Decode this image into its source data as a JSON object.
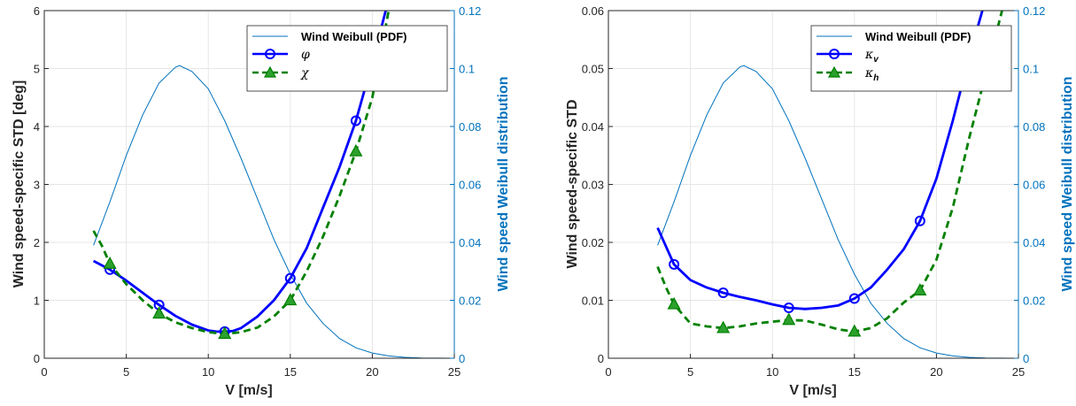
{
  "chart_data": [
    {
      "type": "line",
      "xlabel": "V [m/s]",
      "ylabel": "Wind speed-specific STD [deg]",
      "ylabel_right": "Wind speed Weibull distribution",
      "xlim": [
        0,
        25
      ],
      "ylim": [
        0,
        6
      ],
      "ylim_right": [
        0,
        0.12
      ],
      "xticks": [
        "0",
        "5",
        "10",
        "15",
        "20",
        "25"
      ],
      "yticks": [
        "0",
        "1",
        "2",
        "3",
        "4",
        "5",
        "6"
      ],
      "yticks_right": [
        "0",
        "0.02",
        "0.04",
        "0.06",
        "0.08",
        "0.1",
        "0.12"
      ],
      "grid": true,
      "legend_position": "top-right",
      "weibull": {
        "name": "Wind Weibull (PDF)",
        "x": [
          3,
          4,
          5,
          6,
          7,
          8,
          8.25,
          9,
          10,
          11,
          12,
          13,
          14,
          15,
          16,
          17,
          18,
          19,
          20,
          21,
          22,
          23,
          24,
          25
        ],
        "values": [
          0.039,
          0.054,
          0.07,
          0.084,
          0.095,
          0.1005,
          0.101,
          0.099,
          0.093,
          0.082,
          0.069,
          0.055,
          0.041,
          0.029,
          0.019,
          0.012,
          0.0068,
          0.0036,
          0.0018,
          0.0008,
          0.0003,
          0.0001,
          4e-05,
          1e-05
        ]
      },
      "series": [
        {
          "name": "φ",
          "color": "#0000FF",
          "style": "solid",
          "marker": "circle",
          "x": [
            3,
            4,
            5,
            6,
            7,
            8,
            9,
            10,
            10.5,
            11,
            11.5,
            12,
            13,
            14,
            15,
            16,
            17,
            18,
            19,
            20,
            21
          ],
          "values": [
            1.68,
            1.53,
            1.34,
            1.13,
            0.92,
            0.73,
            0.58,
            0.48,
            0.46,
            0.46,
            0.47,
            0.52,
            0.72,
            1.0,
            1.38,
            1.9,
            2.6,
            3.3,
            4.1,
            5.1,
            6.2
          ],
          "marker_x": [
            4,
            7,
            11,
            15,
            19
          ],
          "marker_values": [
            1.53,
            0.92,
            0.46,
            1.38,
            4.1
          ]
        },
        {
          "name": "χ",
          "color": "#008000",
          "style": "dashed",
          "marker": "triangle",
          "x": [
            3,
            3.5,
            4,
            5,
            6,
            7,
            8,
            9,
            10,
            11,
            12,
            13,
            14,
            15,
            16,
            17,
            18,
            19,
            20,
            21
          ],
          "values": [
            2.2,
            1.95,
            1.63,
            1.28,
            1.0,
            0.77,
            0.62,
            0.52,
            0.45,
            0.42,
            0.45,
            0.53,
            0.72,
            1.0,
            1.5,
            2.1,
            2.8,
            3.57,
            4.5,
            6.0
          ],
          "marker_x": [
            4,
            7,
            11,
            15,
            19
          ],
          "marker_values": [
            1.63,
            0.77,
            0.42,
            1.0,
            3.57
          ]
        }
      ]
    },
    {
      "type": "line",
      "xlabel": "V [m/s]",
      "ylabel": "Wind speed-specific STD",
      "ylabel_right": "Wind speed Weibull distribution",
      "xlim": [
        0,
        25
      ],
      "ylim": [
        0,
        0.06
      ],
      "ylim_right": [
        0,
        0.12
      ],
      "xticks": [
        "0",
        "5",
        "10",
        "15",
        "20",
        "25"
      ],
      "yticks": [
        "0",
        "0.01",
        "0.02",
        "0.03",
        "0.04",
        "0.05",
        "0.06"
      ],
      "yticks_right": [
        "0",
        "0.02",
        "0.04",
        "0.06",
        "0.08",
        "0.1",
        "0.12"
      ],
      "grid": true,
      "legend_position": "top-right",
      "weibull": {
        "name": "Wind Weibull (PDF)",
        "x": [
          3,
          4,
          5,
          6,
          7,
          8,
          8.25,
          9,
          10,
          11,
          12,
          13,
          14,
          15,
          16,
          17,
          18,
          19,
          20,
          21,
          22,
          23,
          24,
          25
        ],
        "values": [
          0.039,
          0.054,
          0.07,
          0.084,
          0.095,
          0.1005,
          0.101,
          0.099,
          0.093,
          0.082,
          0.069,
          0.055,
          0.041,
          0.029,
          0.019,
          0.012,
          0.0068,
          0.0036,
          0.0018,
          0.0008,
          0.0003,
          0.0001,
          4e-05,
          1e-05
        ]
      },
      "series": [
        {
          "name": "κ",
          "subscript": "v",
          "color": "#0000FF",
          "style": "solid",
          "marker": "circle",
          "x": [
            3,
            4,
            5,
            6,
            7,
            8,
            9,
            10,
            11,
            12,
            13,
            14,
            15,
            16,
            17,
            18,
            19,
            20,
            21,
            22,
            23
          ],
          "values": [
            0.0225,
            0.0162,
            0.0135,
            0.0122,
            0.0113,
            0.0106,
            0.01,
            0.0093,
            0.0087,
            0.0085,
            0.0087,
            0.0091,
            0.0103,
            0.0122,
            0.0153,
            0.0188,
            0.0237,
            0.031,
            0.041,
            0.052,
            0.062
          ],
          "marker_x": [
            4,
            7,
            11,
            15,
            19
          ],
          "marker_values": [
            0.0162,
            0.0113,
            0.0087,
            0.0103,
            0.0237
          ]
        },
        {
          "name": "κ",
          "subscript": "h",
          "color": "#008000",
          "style": "dashed",
          "marker": "triangle",
          "x": [
            3,
            3.5,
            4,
            5,
            6,
            7,
            8,
            9,
            10,
            11,
            12,
            13,
            14,
            15,
            16,
            17,
            18,
            19,
            20,
            21,
            22,
            23,
            24
          ],
          "values": [
            0.0158,
            0.0123,
            0.0093,
            0.006,
            0.0055,
            0.0052,
            0.0055,
            0.006,
            0.0063,
            0.0066,
            0.0065,
            0.0058,
            0.005,
            0.0046,
            0.0052,
            0.0069,
            0.0096,
            0.0117,
            0.017,
            0.026,
            0.038,
            0.049,
            0.06
          ],
          "marker_x": [
            4,
            7,
            11,
            15,
            19
          ],
          "marker_values": [
            0.0093,
            0.0052,
            0.0066,
            0.0046,
            0.0117
          ]
        }
      ]
    }
  ]
}
